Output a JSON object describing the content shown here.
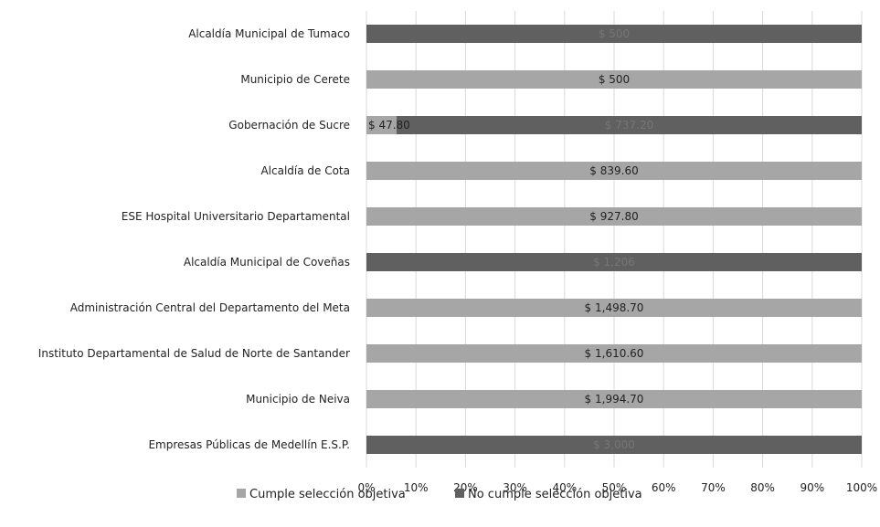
{
  "chart_data": {
    "type": "bar",
    "orientation": "horizontal",
    "stacked": "percent",
    "categories": [
      "Alcaldía Municipal de Tumaco",
      "Municipio de Cerete",
      "Gobernación de Sucre",
      "Alcaldía de Cota",
      "ESE Hospital Universitario Departamental",
      "Alcaldía Municipal de Coveñas",
      "Administración Central del Departamento del Meta",
      "Instituto Departamental de Salud de Norte de Santander",
      "Municipio de Neiva",
      "Empresas Públicas de Medellín E.S.P."
    ],
    "series": [
      {
        "name": "Cumple selección objetiva",
        "color": "#a6a6a6",
        "values": [
          0,
          500,
          47.8,
          839.6,
          927.8,
          0,
          1498.7,
          1610.6,
          1994.7,
          0
        ],
        "labels": [
          "",
          "$ 500",
          "$ 47.80",
          "$ 839.60",
          "$ 927.80",
          "",
          "$ 1,498.70",
          "$ 1,610.60",
          "$ 1,994.70",
          ""
        ]
      },
      {
        "name": "No cumple selección objetiva",
        "color": "#606060",
        "values": [
          500,
          0,
          737.2,
          0,
          0,
          1206,
          0,
          0,
          0,
          3000
        ],
        "labels": [
          "$ 500",
          "",
          "$ 737.20",
          "",
          "",
          "$ 1,206",
          "",
          "",
          "",
          "$ 3,000"
        ]
      }
    ],
    "x_ticks": [
      "0%",
      "10%",
      "20%",
      "30%",
      "40%",
      "50%",
      "60%",
      "70%",
      "80%",
      "90%",
      "100%"
    ],
    "xlim": [
      0,
      100
    ],
    "grid": true,
    "legend_position": "bottom",
    "title": "",
    "xlabel": "",
    "ylabel": ""
  }
}
